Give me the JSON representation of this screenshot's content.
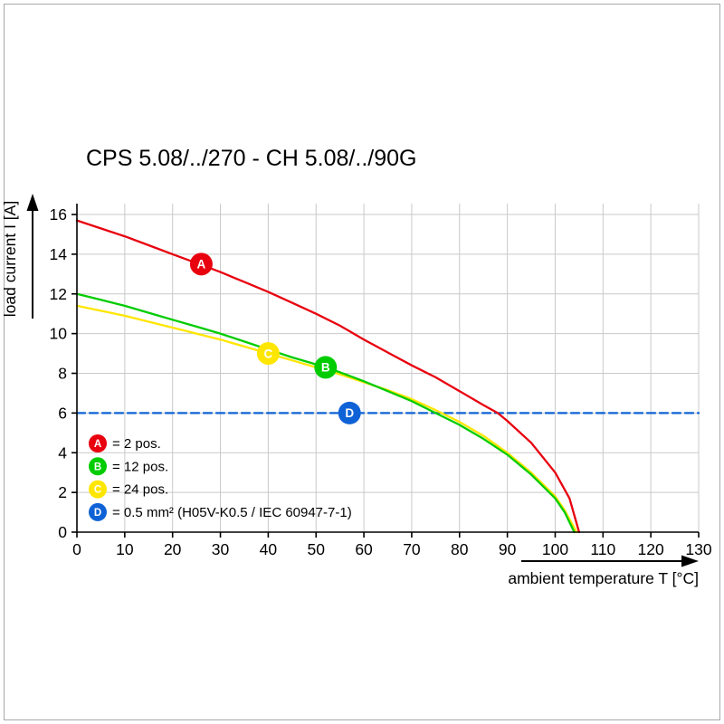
{
  "theme": {
    "background": "#ffffff",
    "border_color": "#a8a8a8",
    "axis_color": "#000000",
    "grid_color": "#c9c9c9",
    "text_color": "#000000"
  },
  "chart_data": {
    "type": "line",
    "title": "CPS 5.08/../270 - CH 5.08/../90G",
    "xlabel": "ambient temperature T [°C]",
    "ylabel": "load current I [A]",
    "xlim": [
      0,
      130
    ],
    "ylim": [
      0,
      16
    ],
    "xticks": [
      0,
      10,
      20,
      30,
      40,
      50,
      60,
      70,
      80,
      90,
      100,
      110,
      120,
      130
    ],
    "yticks": [
      0,
      2,
      4,
      6,
      8,
      10,
      12,
      14,
      16
    ],
    "grid": true,
    "legend_position": "lower-left-inside",
    "series": [
      {
        "name": "A",
        "label": "= 2 pos.",
        "color": "#e8000e",
        "dash": false,
        "points": [
          [
            0,
            15.7
          ],
          [
            5,
            15.3
          ],
          [
            10,
            14.9
          ],
          [
            15,
            14.45
          ],
          [
            20,
            14.0
          ],
          [
            25,
            13.55
          ],
          [
            30,
            13.1
          ],
          [
            35,
            12.6
          ],
          [
            40,
            12.1
          ],
          [
            45,
            11.55
          ],
          [
            50,
            11.0
          ],
          [
            55,
            10.4
          ],
          [
            60,
            9.7
          ],
          [
            65,
            9.05
          ],
          [
            70,
            8.4
          ],
          [
            75,
            7.8
          ],
          [
            80,
            7.1
          ],
          [
            85,
            6.4
          ],
          [
            88,
            6.0
          ],
          [
            90,
            5.6
          ],
          [
            95,
            4.5
          ],
          [
            100,
            3.0
          ],
          [
            103,
            1.7
          ],
          [
            105,
            0
          ]
        ]
      },
      {
        "name": "B",
        "label": "= 12 pos.",
        "color": "#00cc00",
        "dash": false,
        "points": [
          [
            0,
            12.0
          ],
          [
            5,
            11.7
          ],
          [
            10,
            11.4
          ],
          [
            15,
            11.05
          ],
          [
            20,
            10.7
          ],
          [
            25,
            10.35
          ],
          [
            30,
            10.0
          ],
          [
            35,
            9.6
          ],
          [
            40,
            9.2
          ],
          [
            45,
            8.8
          ],
          [
            50,
            8.45
          ],
          [
            55,
            8.05
          ],
          [
            60,
            7.6
          ],
          [
            65,
            7.1
          ],
          [
            70,
            6.6
          ],
          [
            75,
            6.0
          ],
          [
            80,
            5.4
          ],
          [
            85,
            4.7
          ],
          [
            90,
            3.9
          ],
          [
            95,
            2.9
          ],
          [
            100,
            1.7
          ],
          [
            102,
            1.0
          ],
          [
            104,
            0
          ]
        ]
      },
      {
        "name": "C",
        "label": "= 24 pos.",
        "color": "#ffe600",
        "dash": false,
        "points": [
          [
            0,
            11.4
          ],
          [
            5,
            11.15
          ],
          [
            10,
            10.9
          ],
          [
            15,
            10.6
          ],
          [
            20,
            10.3
          ],
          [
            25,
            10.0
          ],
          [
            30,
            9.7
          ],
          [
            35,
            9.35
          ],
          [
            40,
            9.0
          ],
          [
            45,
            8.65
          ],
          [
            50,
            8.3
          ],
          [
            55,
            7.95
          ],
          [
            60,
            7.55
          ],
          [
            65,
            7.15
          ],
          [
            70,
            6.7
          ],
          [
            75,
            6.15
          ],
          [
            80,
            5.55
          ],
          [
            85,
            4.85
          ],
          [
            90,
            4.0
          ],
          [
            95,
            3.0
          ],
          [
            100,
            1.8
          ],
          [
            102,
            1.1
          ],
          [
            104.5,
            0
          ]
        ]
      },
      {
        "name": "D",
        "label": "= 0.5 mm² (H05V-K0.5 / IEC 60947-7-1)",
        "color": "#0f62d6",
        "dash": true,
        "points": [
          [
            0,
            6
          ],
          [
            130,
            6
          ]
        ]
      }
    ],
    "markers": [
      {
        "series": "A",
        "x": 26,
        "y": 13.5
      },
      {
        "series": "B",
        "x": 52,
        "y": 8.3
      },
      {
        "series": "C",
        "x": 40,
        "y": 9.0
      },
      {
        "series": "D",
        "x": 57,
        "y": 6.0
      }
    ]
  }
}
